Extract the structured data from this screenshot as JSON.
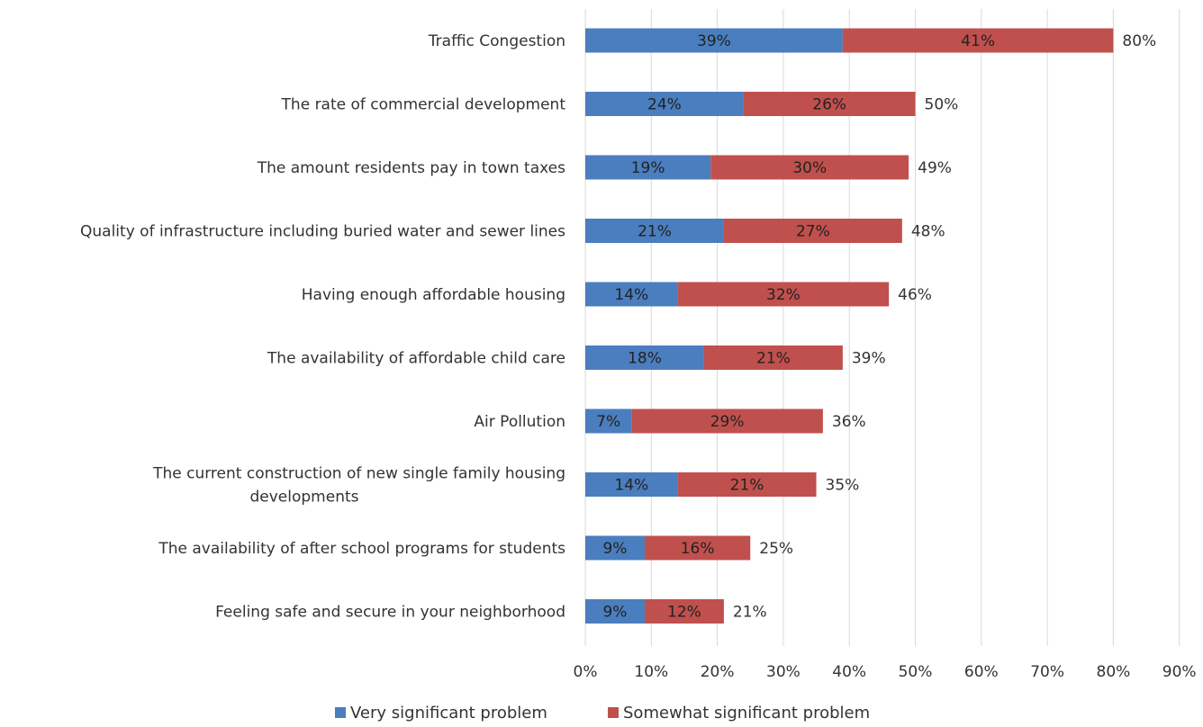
{
  "chart_data": {
    "type": "bar",
    "orientation": "horizontal",
    "stacked": true,
    "title": "",
    "xlabel": "",
    "ylabel": "",
    "xlim": [
      0,
      90
    ],
    "x_ticks": [
      0,
      10,
      20,
      30,
      40,
      50,
      60,
      70,
      80,
      90
    ],
    "x_tick_labels": [
      "0%",
      "10%",
      "20%",
      "30%",
      "40%",
      "50%",
      "60%",
      "70%",
      "80%",
      "90%"
    ],
    "grid": "vertical",
    "legend_position": "bottom",
    "categories": [
      [
        "Traffic Congestion"
      ],
      [
        "The rate of commercial development"
      ],
      [
        "The amount residents pay in town taxes"
      ],
      [
        "Quality of infrastructure including buried water and sewer lines"
      ],
      [
        "Having enough affordable housing"
      ],
      [
        "The availability of affordable child care"
      ],
      [
        "Air Pollution"
      ],
      [
        "The current construction of new single family housing",
        "developments"
      ],
      [
        "The availability of after school programs for students"
      ],
      [
        "Feeling safe and secure in your neighborhood"
      ]
    ],
    "series": [
      {
        "name": "Very significant problem",
        "color": "#4a7ebf",
        "values": [
          39,
          24,
          19,
          21,
          14,
          18,
          7,
          14,
          9,
          9
        ],
        "labels": [
          "39%",
          "24%",
          "19%",
          "21%",
          "14%",
          "18%",
          "7%",
          "14%",
          "9%",
          "9%"
        ]
      },
      {
        "name": "Somewhat significant problem",
        "color": "#c0504d",
        "values": [
          41,
          26,
          30,
          27,
          32,
          21,
          29,
          21,
          16,
          12
        ],
        "labels": [
          "41%",
          "26%",
          "30%",
          "27%",
          "32%",
          "21%",
          "29%",
          "21%",
          "16%",
          "12%"
        ]
      }
    ],
    "totals": [
      80,
      50,
      49,
      48,
      46,
      39,
      36,
      35,
      25,
      21
    ],
    "total_labels": [
      "80%",
      "50%",
      "49%",
      "48%",
      "46%",
      "39%",
      "36%",
      "35%",
      "25%",
      "21%"
    ],
    "grid_color": "#d9d9d9"
  }
}
